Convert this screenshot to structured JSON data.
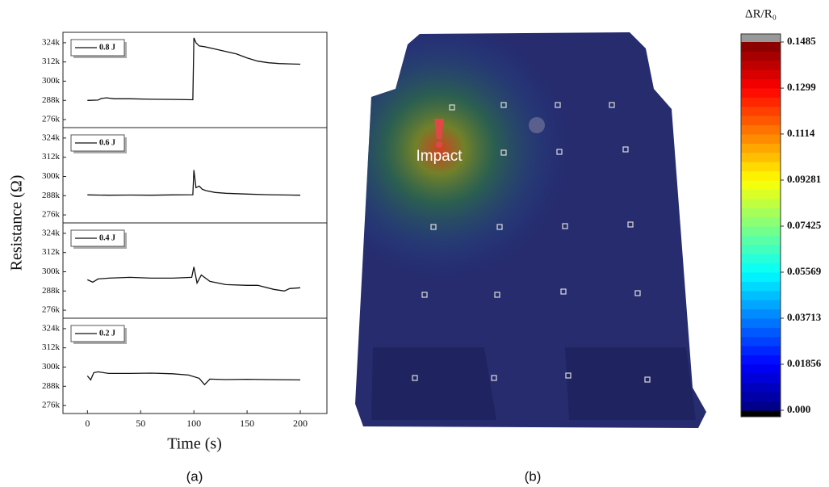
{
  "figure": {
    "ylabel": "Resistance (Ω)",
    "xlabel": "Time (s)",
    "panel_labels": [
      "(a)",
      "(b)"
    ],
    "annotation": "Impact"
  },
  "chart_data": [
    {
      "type": "line",
      "series": [
        {
          "name": "0.8 J",
          "color": "#111111",
          "x": [
            0,
            10,
            13,
            18,
            25,
            40,
            60,
            80,
            99,
            100,
            102,
            105,
            110,
            120,
            130,
            140,
            150,
            160,
            170,
            180,
            190,
            200
          ],
          "values": [
            288000,
            288200,
            289200,
            289600,
            289000,
            289000,
            288700,
            288600,
            288400,
            327000,
            324000,
            322000,
            321500,
            320000,
            318500,
            317000,
            314500,
            312500,
            311500,
            311000,
            310800,
            310600
          ]
        }
      ],
      "xlim": [
        -23,
        225
      ],
      "ylim": [
        271000,
        330500
      ],
      "yticks": [
        {
          "value": 276000,
          "label": "276k"
        },
        {
          "value": 288000,
          "label": "288k"
        },
        {
          "value": 300000,
          "label": "300k"
        },
        {
          "value": 312000,
          "label": "312k"
        },
        {
          "value": 324000,
          "label": "324k"
        }
      ]
    },
    {
      "type": "line",
      "series": [
        {
          "name": "0.6 J",
          "color": "#111111",
          "x": [
            0,
            20,
            40,
            60,
            80,
            99,
            100,
            102,
            105,
            108,
            112,
            120,
            130,
            150,
            170,
            190,
            200
          ],
          "values": [
            288500,
            288300,
            288400,
            288300,
            288500,
            288600,
            304000,
            293000,
            294000,
            292000,
            291000,
            290000,
            289500,
            289000,
            288600,
            288400,
            288300
          ]
        }
      ],
      "xlim": [
        -23,
        225
      ],
      "ylim": [
        271000,
        330500
      ],
      "yticks": [
        {
          "value": 276000,
          "label": "276k"
        },
        {
          "value": 288000,
          "label": "288k"
        },
        {
          "value": 300000,
          "label": "300k"
        },
        {
          "value": 312000,
          "label": "312k"
        },
        {
          "value": 324000,
          "label": "324k"
        }
      ]
    },
    {
      "type": "line",
      "series": [
        {
          "name": "0.4 J",
          "color": "#111111",
          "x": [
            0,
            5,
            10,
            20,
            40,
            60,
            80,
            98,
            100,
            103,
            107,
            115,
            130,
            150,
            160,
            175,
            185,
            190,
            200
          ],
          "values": [
            295000,
            293500,
            295500,
            296000,
            296500,
            296000,
            296000,
            296500,
            303000,
            293000,
            298000,
            294000,
            292000,
            291500,
            291500,
            289000,
            288000,
            289500,
            290000
          ]
        }
      ],
      "xlim": [
        -23,
        225
      ],
      "ylim": [
        271000,
        330500
      ],
      "yticks": [
        {
          "value": 276000,
          "label": "276k"
        },
        {
          "value": 288000,
          "label": "288k"
        },
        {
          "value": 300000,
          "label": "300k"
        },
        {
          "value": 312000,
          "label": "312k"
        },
        {
          "value": 324000,
          "label": "324k"
        }
      ]
    },
    {
      "type": "line",
      "series": [
        {
          "name": "0.2 J",
          "color": "#111111",
          "x": [
            0,
            3,
            6,
            10,
            20,
            40,
            60,
            80,
            95,
            105,
            110,
            115,
            130,
            150,
            170,
            200
          ],
          "values": [
            294500,
            292000,
            296500,
            297000,
            296000,
            296000,
            296200,
            295800,
            295000,
            293000,
            289000,
            292500,
            292200,
            292400,
            292200,
            292000
          ]
        }
      ],
      "xlim": [
        -23,
        225
      ],
      "ylim": [
        271000,
        330500
      ],
      "xticks": [
        0,
        50,
        100,
        150,
        200
      ],
      "yticks": [
        {
          "value": 276000,
          "label": "276k"
        },
        {
          "value": 288000,
          "label": "288k"
        },
        {
          "value": 300000,
          "label": "300k"
        },
        {
          "value": 312000,
          "label": "312k"
        },
        {
          "value": 324000,
          "label": "324k"
        }
      ]
    },
    {
      "type": "colorbar",
      "title": "ΔR/R₀",
      "ylim": [
        0,
        0.1485
      ],
      "yticks": [
        {
          "value": 0.1485,
          "label": "0.1485"
        },
        {
          "value": 0.1299,
          "label": "0.1299"
        },
        {
          "value": 0.1114,
          "label": "0.1114"
        },
        0.09281,
        0.07425,
        0.05569,
        0.03713,
        0.01856,
        {
          "value": 0,
          "label": "0.000"
        }
      ]
    }
  ]
}
